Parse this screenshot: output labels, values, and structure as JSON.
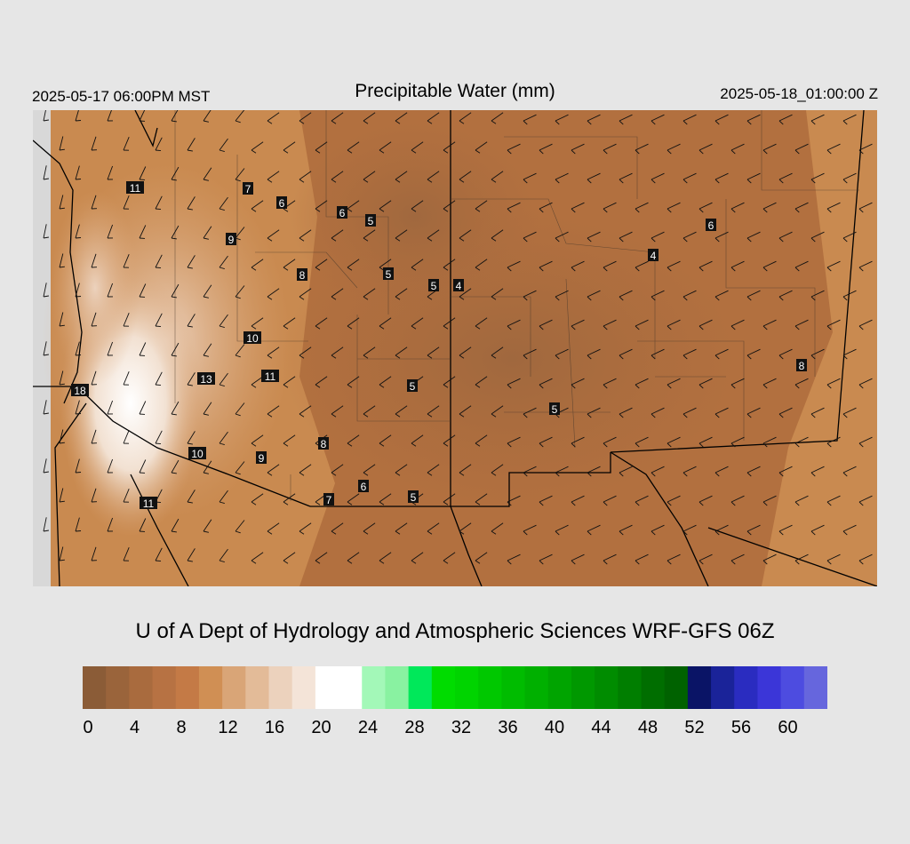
{
  "header": {
    "local_time": "2025-05-17 06:00PM MST",
    "title": "Precipitable Water (mm)",
    "utc_time": "2025-05-18_01:00:00 Z"
  },
  "credit": "U of A Dept of Hydrology and Atmospheric Sciences WRF-GFS 06Z",
  "colorbar": {
    "colors": [
      "#8b5c37",
      "#9a643b",
      "#a96b3e",
      "#b77243",
      "#c47a46",
      "#d08f54",
      "#d9a577",
      "#e3bb98",
      "#ecd2bd",
      "#f4e4d8",
      "#ffffff",
      "#ffffff",
      "#a3f8b8",
      "#89f2a1",
      "#00e85a",
      "#00dc00",
      "#00d400",
      "#00c800",
      "#00bc00",
      "#00b000",
      "#00a400",
      "#009800",
      "#008c00",
      "#007e00",
      "#006e00",
      "#006200",
      "#0a1466",
      "#1a2399",
      "#2a2cc0",
      "#3b36d8",
      "#4d4ce0",
      "#6666dd"
    ],
    "ticks": [
      "0",
      "4",
      "8",
      "12",
      "16",
      "20",
      "24",
      "28",
      "32",
      "36",
      "40",
      "44",
      "48",
      "52",
      "56",
      "60"
    ]
  },
  "station_values": [
    {
      "label": "11"
    },
    {
      "label": "7"
    },
    {
      "label": "6"
    },
    {
      "label": "6"
    },
    {
      "label": "5"
    },
    {
      "label": "9"
    },
    {
      "label": "8"
    },
    {
      "label": "5"
    },
    {
      "label": "5"
    },
    {
      "label": "4"
    },
    {
      "label": "4"
    },
    {
      "label": "6"
    },
    {
      "label": "10"
    },
    {
      "label": "13"
    },
    {
      "label": "11"
    },
    {
      "label": "18"
    },
    {
      "label": "5"
    },
    {
      "label": "5"
    },
    {
      "label": "8"
    },
    {
      "label": "8"
    },
    {
      "label": "10"
    },
    {
      "label": "9"
    },
    {
      "label": "6"
    },
    {
      "label": "7"
    },
    {
      "label": "5"
    },
    {
      "label": "11"
    }
  ]
}
